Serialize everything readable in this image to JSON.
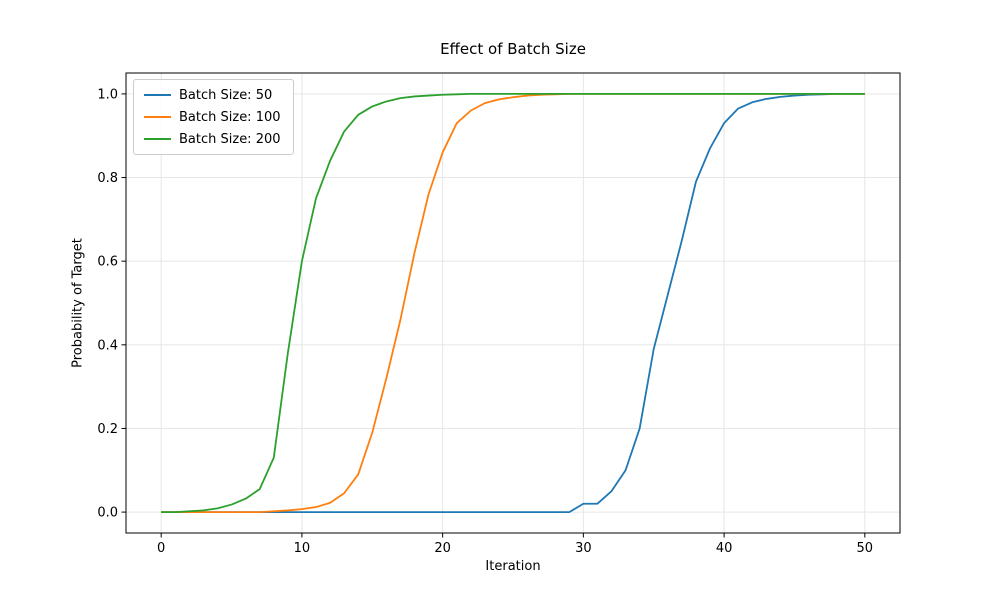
{
  "chart_data": {
    "type": "line",
    "title": "Effect of Batch Size",
    "xlabel": "Iteration",
    "ylabel": "Probability of Target",
    "xlim": [
      -2.5,
      52.5
    ],
    "ylim": [
      -0.05,
      1.05
    ],
    "xticks": [
      0,
      10,
      20,
      30,
      40,
      50
    ],
    "xtick_labels": [
      "0",
      "10",
      "20",
      "30",
      "40",
      "50"
    ],
    "yticks": [
      0.0,
      0.2,
      0.4,
      0.6,
      0.8,
      1.0
    ],
    "ytick_labels": [
      "0.0",
      "0.2",
      "0.4",
      "0.6",
      "0.8",
      "1.0"
    ],
    "grid": true,
    "legend_position": "upper-left",
    "x": [
      0,
      1,
      2,
      3,
      4,
      5,
      6,
      7,
      8,
      9,
      10,
      11,
      12,
      13,
      14,
      15,
      16,
      17,
      18,
      19,
      20,
      21,
      22,
      23,
      24,
      25,
      26,
      27,
      28,
      29,
      30,
      31,
      32,
      33,
      34,
      35,
      36,
      37,
      38,
      39,
      40,
      41,
      42,
      43,
      44,
      45,
      46,
      47,
      48,
      49,
      50
    ],
    "series": [
      {
        "name": "Batch Size: 50",
        "color": "#1f77b4",
        "values": [
          0.0,
          0.0,
          0.0,
          0.0,
          0.0,
          0.0,
          0.0,
          0.0,
          0.0,
          0.0,
          0.0,
          0.0,
          0.0,
          0.0,
          0.0,
          0.0,
          0.0,
          0.0,
          0.0,
          0.0,
          0.0,
          0.0,
          0.0,
          0.0,
          0.0,
          0.0,
          0.0,
          0.0,
          0.0,
          0.0,
          0.02,
          0.02,
          0.05,
          0.1,
          0.2,
          0.39,
          0.52,
          0.65,
          0.79,
          0.87,
          0.93,
          0.965,
          0.98,
          0.988,
          0.993,
          0.996,
          0.998,
          0.999,
          1.0,
          1.0,
          1.0
        ]
      },
      {
        "name": "Batch Size: 100",
        "color": "#ff7f0e",
        "values": [
          0.0,
          0.0,
          0.0,
          0.0,
          0.0,
          0.0,
          0.0,
          0.0,
          0.002,
          0.004,
          0.007,
          0.012,
          0.022,
          0.045,
          0.09,
          0.19,
          0.32,
          0.46,
          0.62,
          0.76,
          0.86,
          0.93,
          0.96,
          0.978,
          0.987,
          0.992,
          0.996,
          0.998,
          0.999,
          1.0,
          1.0,
          1.0,
          1.0,
          1.0,
          1.0,
          1.0,
          1.0,
          1.0,
          1.0,
          1.0,
          1.0,
          1.0,
          1.0,
          1.0,
          1.0,
          1.0,
          1.0,
          1.0,
          1.0,
          1.0,
          1.0
        ]
      },
      {
        "name": "Batch Size: 200",
        "color": "#2ca02c",
        "values": [
          0.0,
          0.0,
          0.002,
          0.004,
          0.009,
          0.018,
          0.032,
          0.055,
          0.13,
          0.38,
          0.6,
          0.75,
          0.84,
          0.91,
          0.95,
          0.97,
          0.982,
          0.99,
          0.994,
          0.996,
          0.998,
          0.999,
          1.0,
          1.0,
          1.0,
          1.0,
          1.0,
          1.0,
          1.0,
          1.0,
          1.0,
          1.0,
          1.0,
          1.0,
          1.0,
          1.0,
          1.0,
          1.0,
          1.0,
          1.0,
          1.0,
          1.0,
          1.0,
          1.0,
          1.0,
          1.0,
          1.0,
          1.0,
          1.0,
          1.0,
          1.0
        ]
      }
    ]
  },
  "colors": {
    "background": "#ffffff",
    "grid": "#e6e6e6",
    "spine": "#000000",
    "text": "#000000",
    "legend_border": "#cccccc"
  }
}
